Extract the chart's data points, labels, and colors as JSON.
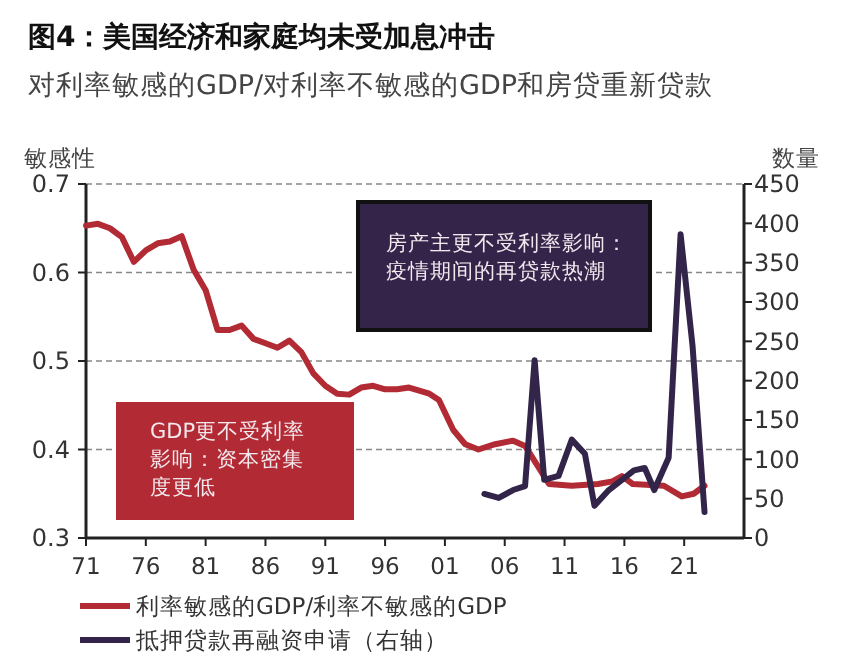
{
  "chart_data": {
    "type": "line",
    "title": "图4：美国经济和家庭均未受加息冲击",
    "subtitle": "对利率敏感的GDP/对利率不敏感的GDP和房贷重新贷款",
    "ylabel": "敏感性",
    "y2label": "数量",
    "xlim": [
      1971,
      2026
    ],
    "xticks": [
      {
        "value": 1971,
        "label": "71"
      },
      {
        "value": 1976,
        "label": "76"
      },
      {
        "value": 1981,
        "label": "81"
      },
      {
        "value": 1986,
        "label": "86"
      },
      {
        "value": 1991,
        "label": "91"
      },
      {
        "value": 1996,
        "label": "96"
      },
      {
        "value": 2001,
        "label": "01"
      },
      {
        "value": 2006,
        "label": "06"
      },
      {
        "value": 2011,
        "label": "11"
      },
      {
        "value": 2016,
        "label": "16"
      },
      {
        "value": 2021,
        "label": "21"
      }
    ],
    "ylim": [
      0.3,
      0.7
    ],
    "yticks": [
      0.3,
      0.4,
      0.5,
      0.6,
      0.7
    ],
    "y2lim": [
      0,
      450
    ],
    "y2ticks": [
      0,
      50,
      100,
      150,
      200,
      250,
      300,
      350,
      400,
      450
    ],
    "grid": "y",
    "legend": "bottom",
    "line_style": "solid",
    "marker": "none",
    "series": [
      {
        "name": "利率敏感的GDP/利率不敏感的GDP",
        "color": "#b22a33",
        "x": [
          1971,
          1972,
          1973,
          1974,
          1975,
          1976,
          1977,
          1978,
          1979,
          1980,
          1981,
          1982,
          1983,
          1984,
          1985,
          1986,
          1987,
          1988,
          1989,
          1990,
          1991,
          1992,
          1993,
          1994,
          1995,
          1996,
          1997,
          1998,
          1999.7,
          2000.5,
          2001.7,
          2002.7,
          2003.8,
          2005.2,
          2006.7,
          2007.7,
          2009.7,
          2011.6,
          2013.8,
          2015,
          2015.8,
          2016.7,
          2019.3,
          2020.8,
          2021.8,
          2022.7
        ],
        "values": [
          0.653,
          0.655,
          0.65,
          0.64,
          0.612,
          0.625,
          0.633,
          0.635,
          0.641,
          0.603,
          0.58,
          0.535,
          0.535,
          0.54,
          0.525,
          0.52,
          0.515,
          0.523,
          0.51,
          0.486,
          0.472,
          0.463,
          0.462,
          0.47,
          0.472,
          0.468,
          0.468,
          0.47,
          0.463,
          0.456,
          0.422,
          0.406,
          0.4,
          0.406,
          0.41,
          0.404,
          0.361,
          0.359,
          0.361,
          0.364,
          0.37,
          0.361,
          0.359,
          0.347,
          0.35,
          0.359
        ]
      },
      {
        "name": "抵押贷款再融资申请（右轴）",
        "color": "#33254a",
        "axis": "y2",
        "x": [
          2004.3,
          2005.5,
          2006.7,
          2007.7,
          2008.5,
          2009.3,
          2010.5,
          2011.6,
          2012.7,
          2013.5,
          2014.7,
          2015.8,
          2016.8,
          2017.7,
          2018.5,
          2019.7,
          2020.7,
          2021.7,
          2022.7
        ],
        "values": [
          56,
          51,
          61,
          66,
          226,
          74,
          79,
          125,
          107,
          41,
          61,
          74,
          86,
          89,
          61,
          102,
          386,
          244,
          33
        ]
      }
    ],
    "annotations": [
      "房产主更不受利率影响：疫情期间的再贷款热潮",
      "GDP更不受利率影响：资本密集度更低"
    ]
  }
}
